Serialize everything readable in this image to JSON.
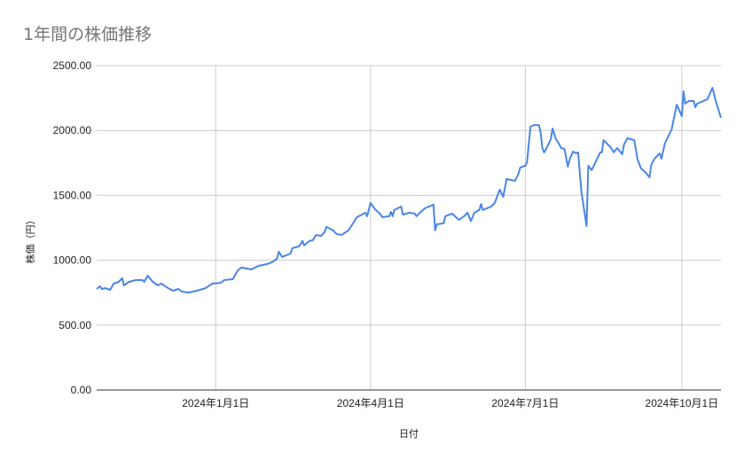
{
  "chart_data": {
    "type": "line",
    "title": "1年間の株価推移",
    "xlabel": "日付",
    "ylabel": "株価（円）",
    "ylim": [
      0,
      2500
    ],
    "xlim": [
      "2023-10-23",
      "2024-10-24"
    ],
    "yticks": [
      "0.00",
      "500.00",
      "1000.00",
      "1500.00",
      "2000.00",
      "2500.00"
    ],
    "xticks": [
      {
        "date": "2024-01-01",
        "label": "2024年1月1日"
      },
      {
        "date": "2024-04-01",
        "label": "2024年4月1日"
      },
      {
        "date": "2024-07-01",
        "label": "2024年7月1日"
      },
      {
        "date": "2024-10-01",
        "label": "2024年10月1日"
      }
    ],
    "grid": true,
    "line_color": "#4a86e8",
    "series": [
      {
        "points": [
          [
            "2023-10-23",
            779
          ],
          [
            "2023-10-25",
            800
          ],
          [
            "2023-10-26",
            779
          ],
          [
            "2023-10-28",
            785
          ],
          [
            "2023-10-31",
            772
          ],
          [
            "2023-11-02",
            820
          ],
          [
            "2023-11-05",
            833
          ],
          [
            "2023-11-07",
            861
          ],
          [
            "2023-11-08",
            806
          ],
          [
            "2023-11-11",
            833
          ],
          [
            "2023-11-15",
            847
          ],
          [
            "2023-11-19",
            847
          ],
          [
            "2023-11-20",
            833
          ],
          [
            "2023-11-22",
            881
          ],
          [
            "2023-11-25",
            833
          ],
          [
            "2023-11-28",
            806
          ],
          [
            "2023-11-30",
            820
          ],
          [
            "2023-12-04",
            785
          ],
          [
            "2023-12-07",
            765
          ],
          [
            "2023-12-10",
            779
          ],
          [
            "2023-12-12",
            758
          ],
          [
            "2023-12-16",
            751
          ],
          [
            "2023-12-21",
            765
          ],
          [
            "2023-12-26",
            785
          ],
          [
            "2023-12-30",
            820
          ],
          [
            "2024-01-04",
            826
          ],
          [
            "2024-01-06",
            847
          ],
          [
            "2024-01-11",
            854
          ],
          [
            "2024-01-14",
            922
          ],
          [
            "2024-01-16",
            943
          ],
          [
            "2024-01-22",
            929
          ],
          [
            "2024-01-26",
            956
          ],
          [
            "2024-01-31",
            970
          ],
          [
            "2024-02-03",
            984
          ],
          [
            "2024-02-06",
            1011
          ],
          [
            "2024-02-07",
            1066
          ],
          [
            "2024-02-09",
            1025
          ],
          [
            "2024-02-14",
            1052
          ],
          [
            "2024-02-15",
            1093
          ],
          [
            "2024-02-19",
            1107
          ],
          [
            "2024-02-21",
            1148
          ],
          [
            "2024-02-22",
            1114
          ],
          [
            "2024-02-25",
            1148
          ],
          [
            "2024-02-27",
            1154
          ],
          [
            "2024-02-29",
            1195
          ],
          [
            "2024-03-03",
            1188
          ],
          [
            "2024-03-05",
            1216
          ],
          [
            "2024-03-06",
            1257
          ],
          [
            "2024-03-10",
            1230
          ],
          [
            "2024-03-12",
            1202
          ],
          [
            "2024-03-15",
            1195
          ],
          [
            "2024-03-19",
            1230
          ],
          [
            "2024-03-22",
            1291
          ],
          [
            "2024-03-24",
            1332
          ],
          [
            "2024-03-27",
            1352
          ],
          [
            "2024-03-29",
            1366
          ],
          [
            "2024-03-30",
            1339
          ],
          [
            "2024-04-01",
            1441
          ],
          [
            "2024-04-04",
            1387
          ],
          [
            "2024-04-06",
            1366
          ],
          [
            "2024-04-08",
            1332
          ],
          [
            "2024-04-12",
            1339
          ],
          [
            "2024-04-13",
            1373
          ],
          [
            "2024-04-14",
            1339
          ],
          [
            "2024-04-15",
            1387
          ],
          [
            "2024-04-19",
            1414
          ],
          [
            "2024-04-20",
            1352
          ],
          [
            "2024-04-24",
            1366
          ],
          [
            "2024-04-27",
            1359
          ],
          [
            "2024-04-28",
            1339
          ],
          [
            "2024-04-30",
            1366
          ],
          [
            "2024-05-03",
            1400
          ],
          [
            "2024-05-08",
            1428
          ],
          [
            "2024-05-09",
            1230
          ],
          [
            "2024-05-10",
            1277
          ],
          [
            "2024-05-14",
            1284
          ],
          [
            "2024-05-15",
            1339
          ],
          [
            "2024-05-19",
            1359
          ],
          [
            "2024-05-23",
            1311
          ],
          [
            "2024-05-26",
            1339
          ],
          [
            "2024-05-28",
            1366
          ],
          [
            "2024-05-30",
            1301
          ],
          [
            "2024-06-01",
            1366
          ],
          [
            "2024-06-04",
            1387
          ],
          [
            "2024-06-05",
            1434
          ],
          [
            "2024-06-06",
            1387
          ],
          [
            "2024-06-11",
            1414
          ],
          [
            "2024-06-13",
            1441
          ],
          [
            "2024-06-16",
            1544
          ],
          [
            "2024-06-18",
            1489
          ],
          [
            "2024-06-20",
            1626
          ],
          [
            "2024-06-25",
            1612
          ],
          [
            "2024-06-27",
            1667
          ],
          [
            "2024-06-28",
            1714
          ],
          [
            "2024-07-01",
            1728
          ],
          [
            "2024-07-02",
            1755
          ],
          [
            "2024-07-04",
            2029
          ],
          [
            "2024-07-06",
            2042
          ],
          [
            "2024-07-09",
            2042
          ],
          [
            "2024-07-10",
            1981
          ],
          [
            "2024-07-11",
            1865
          ],
          [
            "2024-07-12",
            1831
          ],
          [
            "2024-07-13",
            1851
          ],
          [
            "2024-07-16",
            1933
          ],
          [
            "2024-07-17",
            2015
          ],
          [
            "2024-07-19",
            1933
          ],
          [
            "2024-07-21",
            1892
          ],
          [
            "2024-07-22",
            1865
          ],
          [
            "2024-07-24",
            1858
          ],
          [
            "2024-07-26",
            1721
          ],
          [
            "2024-07-27",
            1776
          ],
          [
            "2024-07-29",
            1837
          ],
          [
            "2024-07-31",
            1824
          ],
          [
            "2024-08-01",
            1831
          ],
          [
            "2024-08-03",
            1523
          ],
          [
            "2024-08-06",
            1264
          ],
          [
            "2024-08-07",
            1728
          ],
          [
            "2024-08-09",
            1694
          ],
          [
            "2024-08-14",
            1831
          ],
          [
            "2024-08-15",
            1831
          ],
          [
            "2024-08-16",
            1926
          ],
          [
            "2024-08-20",
            1872
          ],
          [
            "2024-08-22",
            1831
          ],
          [
            "2024-08-24",
            1865
          ],
          [
            "2024-08-27",
            1817
          ],
          [
            "2024-08-28",
            1892
          ],
          [
            "2024-08-30",
            1940
          ],
          [
            "2024-09-03",
            1926
          ],
          [
            "2024-09-05",
            1776
          ],
          [
            "2024-09-07",
            1708
          ],
          [
            "2024-09-10",
            1673
          ],
          [
            "2024-09-12",
            1639
          ],
          [
            "2024-09-13",
            1735
          ],
          [
            "2024-09-15",
            1783
          ],
          [
            "2024-09-18",
            1824
          ],
          [
            "2024-09-19",
            1783
          ],
          [
            "2024-09-21",
            1899
          ],
          [
            "2024-09-25",
            2008
          ],
          [
            "2024-09-28",
            2199
          ],
          [
            "2024-10-01",
            2111
          ],
          [
            "2024-10-02",
            2302
          ],
          [
            "2024-10-03",
            2206
          ],
          [
            "2024-10-05",
            2227
          ],
          [
            "2024-10-08",
            2227
          ],
          [
            "2024-10-09",
            2179
          ],
          [
            "2024-10-10",
            2206
          ],
          [
            "2024-10-16",
            2240
          ],
          [
            "2024-10-19",
            2329
          ],
          [
            "2024-10-21",
            2227
          ],
          [
            "2024-10-24",
            2097
          ]
        ]
      }
    ]
  }
}
